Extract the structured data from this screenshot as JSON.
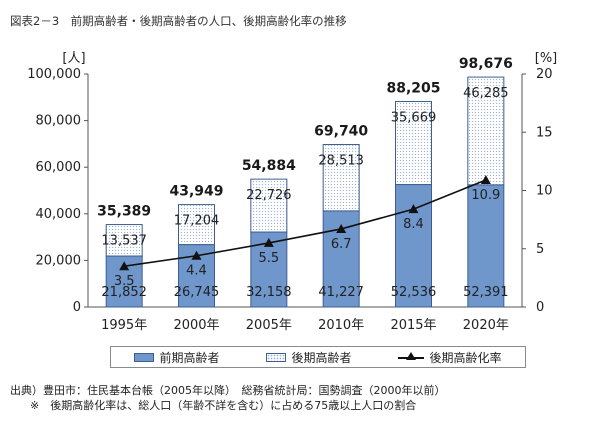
{
  "figure_title": "図表2－3　前期高齢者・後期高齢者の人口、後期高齢化率の推移",
  "colors": {
    "early": "#6f97cc",
    "late_dots": "#9fb4d6",
    "bar_border": "#3d5f8f",
    "rate_line": "#111111"
  },
  "legend": {
    "early_label": "前期高齢者",
    "late_label": "後期高齢者",
    "rate_label": "後期高齢化率"
  },
  "source": {
    "line1": "出典）豊田市：住民基本台帳（2005年以降）　総務省統計局：国勢調査（2000年以前）",
    "line2": "※　後期高齢化率は、総人口（年齢不詳を含む）に占める75歳以上人口の割合"
  },
  "chart_data": {
    "type": "bar",
    "stacked": true,
    "categories": [
      "1995年",
      "2000年",
      "2005年",
      "2010年",
      "2015年",
      "2020年"
    ],
    "series": [
      {
        "name": "前期高齢者",
        "values": [
          21852,
          26745,
          32158,
          41227,
          52536,
          52391
        ],
        "value_labels": [
          "21,852",
          "26,745",
          "32,158",
          "41,227",
          "52,536",
          "52,391"
        ]
      },
      {
        "name": "後期高齢者",
        "values": [
          13537,
          17204,
          22726,
          28513,
          35669,
          46285
        ],
        "value_labels": [
          "13,537",
          "17,204",
          "22,726",
          "28,513",
          "35,669",
          "46,285"
        ]
      }
    ],
    "totals": [
      35389,
      43949,
      54884,
      69740,
      88205,
      98676
    ],
    "total_labels": [
      "35,389",
      "43,949",
      "54,884",
      "69,740",
      "88,205",
      "98,676"
    ],
    "line_series": {
      "name": "後期高齢化率",
      "axis": "right",
      "values": [
        3.5,
        4.4,
        5.5,
        6.7,
        8.4,
        10.9
      ],
      "value_labels": [
        "3.5",
        "4.4",
        "5.5",
        "6.7",
        "8.4",
        "10.9"
      ]
    },
    "y_left": {
      "unit": "[人]",
      "ylim": [
        0,
        100000
      ],
      "ticks": [
        "0",
        "20,000",
        "40,000",
        "60,000",
        "80,000",
        "100,000"
      ]
    },
    "y_right": {
      "unit": "[%]",
      "ylim": [
        0,
        20
      ],
      "ticks": [
        "0",
        "5",
        "10",
        "15",
        "20"
      ]
    },
    "grid": false,
    "legend_position": "bottom"
  }
}
